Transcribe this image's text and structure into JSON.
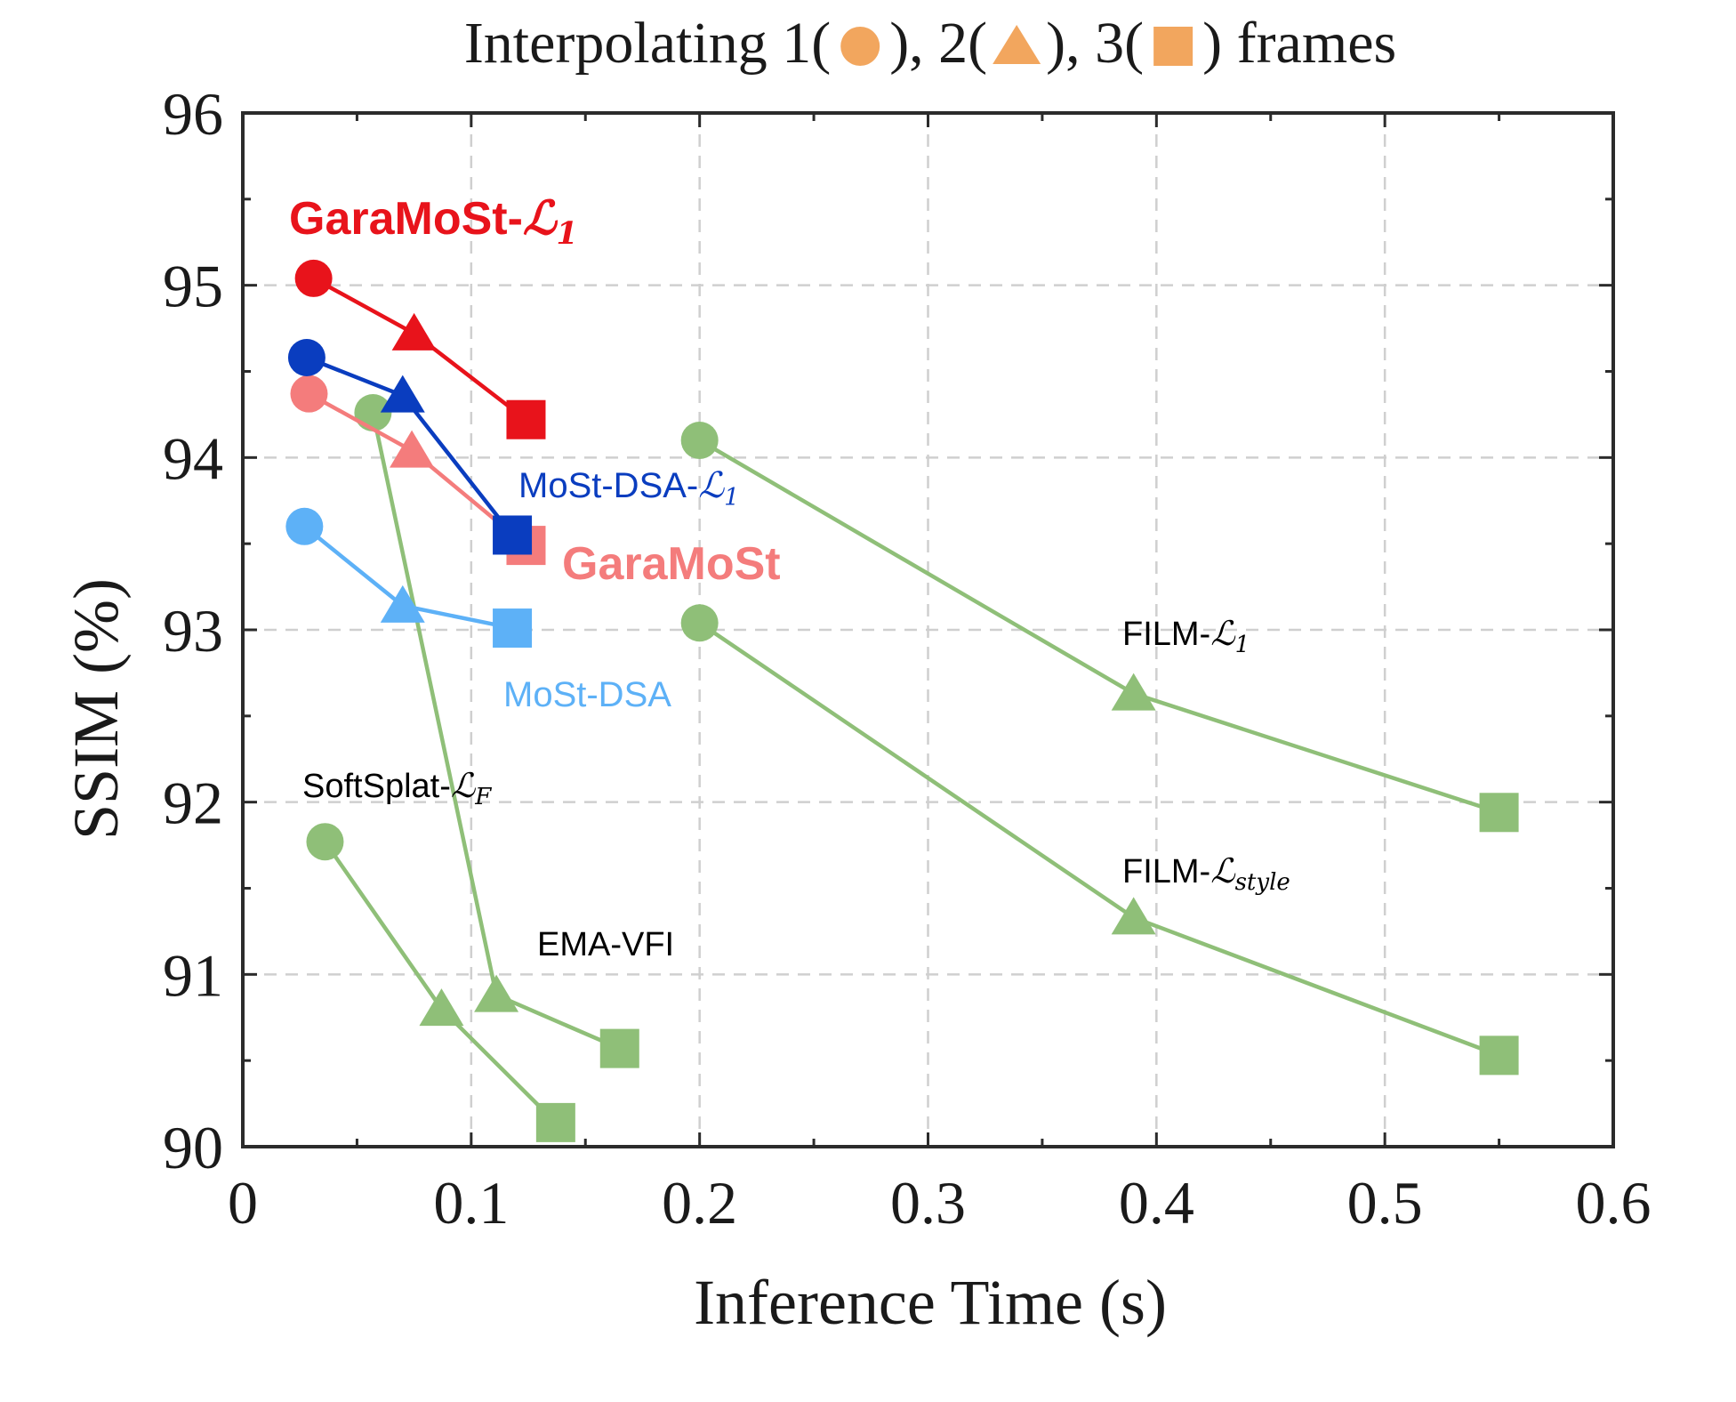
{
  "chart_data": {
    "type": "scatter",
    "title_parts": [
      "Interpolating 1(",
      "), 2(",
      "), 3(",
      ") frames"
    ],
    "title_marker_color": "#F2A65E",
    "xlabel": "Inference Time (s)",
    "ylabel": "SSIM (%)",
    "xlim": [
      0,
      0.6
    ],
    "ylim": [
      90,
      96
    ],
    "x_ticks": [
      0,
      0.1,
      0.2,
      0.3,
      0.4,
      0.5,
      0.6
    ],
    "x_tick_labels": [
      "0",
      "0.1",
      "0.2",
      "0.3",
      "0.4",
      "0.5",
      "0.6"
    ],
    "y_ticks": [
      90,
      91,
      92,
      93,
      94,
      95,
      96
    ],
    "y_tick_labels": [
      "90",
      "91",
      "92",
      "93",
      "94",
      "95",
      "96"
    ],
    "grid": true,
    "marker_legend": {
      "1": "circle",
      "2": "triangle",
      "3": "square"
    },
    "series": [
      {
        "name": "GaraMoSt-L1",
        "label_main": "GaraMoSt-",
        "label_math": "ℒ",
        "label_sub": "1",
        "color": "#E8131B",
        "label_color": "#E8131B",
        "label_bold": true,
        "points": [
          {
            "frames": 1,
            "x": 0.031,
            "y": 95.04
          },
          {
            "frames": 2,
            "x": 0.075,
            "y": 94.72
          },
          {
            "frames": 3,
            "x": 0.124,
            "y": 94.22
          }
        ]
      },
      {
        "name": "MoSt-DSA-L1",
        "label_main": "MoSt-DSA-",
        "label_math": "ℒ",
        "label_sub": "1",
        "color": "#0A3DBF",
        "label_color": "#0A3DBF",
        "label_bold": false,
        "points": [
          {
            "frames": 1,
            "x": 0.028,
            "y": 94.58
          },
          {
            "frames": 2,
            "x": 0.07,
            "y": 94.36
          },
          {
            "frames": 3,
            "x": 0.118,
            "y": 93.55
          }
        ]
      },
      {
        "name": "GaraMoSt",
        "label_main": "GaraMoSt",
        "label_math": "",
        "label_sub": "",
        "color": "#F47C7C",
        "label_color": "#F47C7C",
        "label_bold": true,
        "points": [
          {
            "frames": 1,
            "x": 0.029,
            "y": 94.37
          },
          {
            "frames": 2,
            "x": 0.074,
            "y": 94.04
          },
          {
            "frames": 3,
            "x": 0.124,
            "y": 93.49
          }
        ]
      },
      {
        "name": "MoSt-DSA",
        "label_main": "MoSt-DSA",
        "label_math": "",
        "label_sub": "",
        "color": "#5DB1F7",
        "label_color": "#5DB1F7",
        "label_bold": false,
        "points": [
          {
            "frames": 1,
            "x": 0.027,
            "y": 93.6
          },
          {
            "frames": 2,
            "x": 0.07,
            "y": 93.14
          },
          {
            "frames": 3,
            "x": 0.118,
            "y": 93.01
          }
        ]
      },
      {
        "name": "EMA-VFI",
        "label_main": "EMA-VFI",
        "label_math": "",
        "label_sub": "",
        "color": "#8FBF78",
        "label_color": "#000000",
        "label_bold": false,
        "points": [
          {
            "frames": 1,
            "x": 0.057,
            "y": 94.26
          },
          {
            "frames": 2,
            "x": 0.111,
            "y": 90.88
          },
          {
            "frames": 3,
            "x": 0.165,
            "y": 90.57
          }
        ]
      },
      {
        "name": "SoftSplat-LF",
        "label_main": "SoftSplat-",
        "label_math": "ℒ",
        "label_sub": "F",
        "color": "#8FBF78",
        "label_color": "#000000",
        "label_bold": false,
        "points": [
          {
            "frames": 1,
            "x": 0.036,
            "y": 91.77
          },
          {
            "frames": 2,
            "x": 0.087,
            "y": 90.8
          },
          {
            "frames": 3,
            "x": 0.137,
            "y": 90.14
          }
        ]
      },
      {
        "name": "FILM-L1",
        "label_main": "FILM-",
        "label_math": "ℒ",
        "label_sub": "1",
        "color": "#8FBF78",
        "label_color": "#000000",
        "label_bold": false,
        "points": [
          {
            "frames": 1,
            "x": 0.2,
            "y": 94.1
          },
          {
            "frames": 2,
            "x": 0.39,
            "y": 92.63
          },
          {
            "frames": 3,
            "x": 0.55,
            "y": 91.94
          }
        ]
      },
      {
        "name": "FILM-Lstyle",
        "label_main": "FILM-",
        "label_math": "ℒ",
        "label_sub": "style",
        "color": "#8FBF78",
        "label_color": "#000000",
        "label_bold": false,
        "points": [
          {
            "frames": 1,
            "x": 0.2,
            "y": 93.04
          },
          {
            "frames": 2,
            "x": 0.39,
            "y": 91.33
          },
          {
            "frames": 3,
            "x": 0.55,
            "y": 90.53
          }
        ]
      }
    ]
  }
}
